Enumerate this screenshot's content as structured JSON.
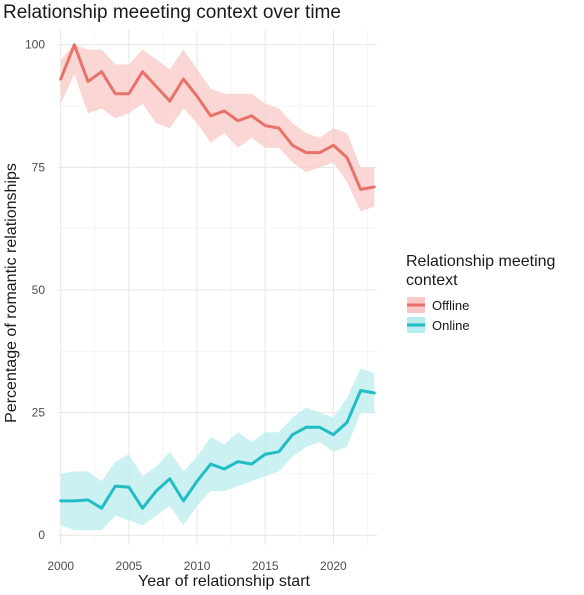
{
  "chart_data": {
    "type": "line",
    "title": "Relationship meeeting context over time",
    "xlabel": "Year of relationship start",
    "ylabel": "Percentage of romantic relationships",
    "xlim": [
      1999.8,
      2023.2
    ],
    "ylim": [
      -2,
      103
    ],
    "x_ticks": [
      2000,
      2005,
      2010,
      2015,
      2020
    ],
    "y_ticks": [
      0,
      25,
      50,
      75,
      100
    ],
    "grid": true,
    "legend": {
      "title_lines": [
        "Relationship meeting",
        "context"
      ],
      "position": "right"
    },
    "x": [
      2000,
      2001,
      2002,
      2003,
      2004,
      2005,
      2006,
      2007,
      2008,
      2009,
      2010,
      2011,
      2012,
      2013,
      2014,
      2015,
      2016,
      2017,
      2018,
      2019,
      2020,
      2021,
      2022,
      2023
    ],
    "series": [
      {
        "name": "Offline",
        "color": "#e8726a",
        "band_color": "#f8c8c6",
        "values": [
          93,
          100,
          92.5,
          94.5,
          90,
          90,
          94.5,
          91.5,
          88.5,
          93,
          89.5,
          85.5,
          86.5,
          84.5,
          85.5,
          83.5,
          83,
          79.5,
          78,
          78,
          79.5,
          77,
          70.5,
          71
        ],
        "lower": [
          88,
          94,
          86,
          87,
          85,
          86,
          88,
          84,
          83,
          87,
          84,
          80,
          82,
          79,
          81,
          79,
          79,
          76,
          74,
          75,
          76,
          72,
          66,
          67
        ],
        "upper": [
          97,
          100,
          99,
          99,
          96,
          96,
          99,
          97,
          95,
          99,
          95,
          91,
          90,
          90,
          90,
          88,
          87,
          84,
          82,
          81,
          83,
          82,
          75,
          75
        ]
      },
      {
        "name": "Online",
        "color": "#21bcc4",
        "band_color": "#b9ecef",
        "values": [
          7,
          7,
          7.2,
          5.5,
          10,
          9.8,
          5.5,
          9,
          11.5,
          7,
          11,
          14.5,
          13.5,
          15,
          14.5,
          16.5,
          17,
          20.5,
          22,
          22,
          20.5,
          23,
          29.5,
          29
        ],
        "lower": [
          2,
          1,
          1,
          1,
          4,
          3,
          2,
          4,
          6,
          2,
          6,
          9,
          9,
          10,
          11,
          12,
          13,
          16,
          18,
          19,
          17,
          18,
          25,
          25
        ],
        "upper": [
          12.5,
          13,
          13,
          11,
          15,
          16.5,
          12,
          14,
          17,
          13,
          16,
          20,
          18.5,
          21,
          19,
          21,
          21,
          24,
          26,
          25,
          24,
          28,
          34,
          33
        ]
      }
    ]
  }
}
